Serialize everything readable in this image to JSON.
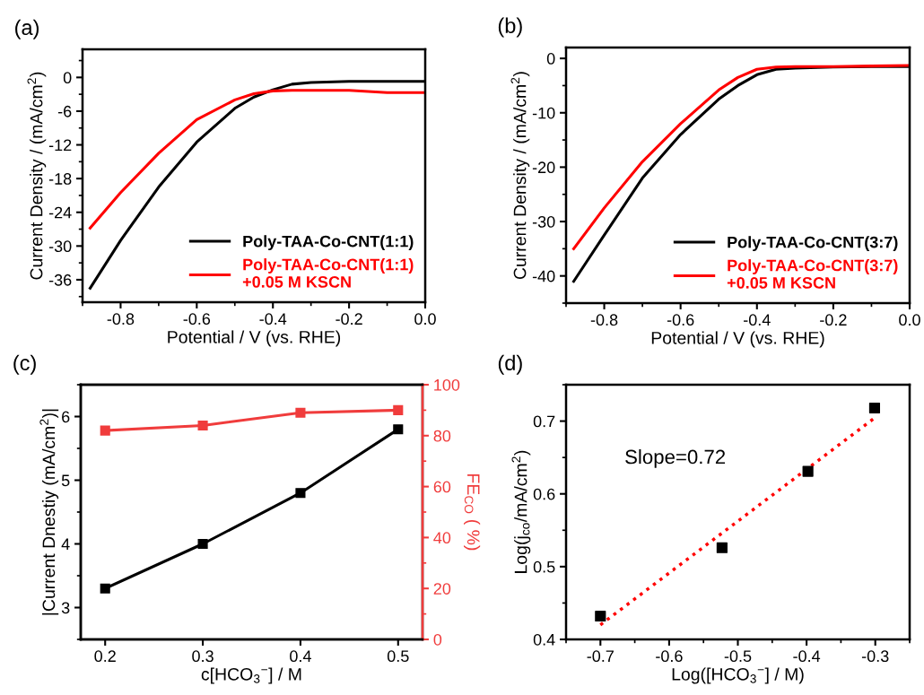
{
  "chart_data": [
    {
      "type": "line",
      "title": "(a)",
      "xlabel": "Potential / V (vs. RHE)",
      "ylabel": "Current Density / (mA/cm$^{2}$)",
      "xlim": [
        -0.9,
        0.0
      ],
      "xticks": [
        -0.8,
        -0.6,
        -0.4,
        -0.2,
        {
          "value": 0,
          "label": "0.0"
        }
      ],
      "ylim": [
        -40,
        5
      ],
      "yticks": [
        0,
        -6,
        -12,
        -18,
        -24,
        -30,
        -36
      ],
      "legend": "bottom right",
      "x": [
        -0.88,
        -0.8,
        -0.7,
        -0.6,
        -0.5,
        -0.45,
        -0.4,
        -0.35,
        -0.3,
        -0.2,
        -0.1,
        0.0
      ],
      "series": [
        {
          "name": "Poly-TAA-Co-CNT(1:1)",
          "color": "#000000",
          "values": [
            -37.5,
            -29,
            -19.5,
            -11.5,
            -5.5,
            -3.5,
            -2.2,
            -1.2,
            -0.9,
            -0.7,
            -0.7,
            -0.7
          ]
        },
        {
          "name": "Poly-TAA-Co-CNT(1:1)\n+0.05 M KSCN",
          "color": "#ff0000",
          "values": [
            -26.8,
            -20.5,
            -13.5,
            -7.5,
            -4,
            -2.9,
            -2.4,
            -2.3,
            -2.3,
            -2.3,
            -2.7,
            -2.7
          ]
        }
      ]
    },
    {
      "type": "line",
      "title": "(b)",
      "xlabel": "Potential / V (vs. RHE)",
      "ylabel": "Current Density / (mA/cm$^{2}$)",
      "xlim": [
        -0.9,
        0.0
      ],
      "xticks": [
        -0.8,
        -0.6,
        -0.4,
        -0.2,
        {
          "value": 0,
          "label": "0.0"
        }
      ],
      "ylim": [
        -45,
        2
      ],
      "yticks": [
        0,
        -10,
        -20,
        -30,
        -40
      ],
      "legend": "bottom right",
      "x": [
        -0.88,
        -0.8,
        -0.7,
        -0.6,
        -0.5,
        -0.45,
        -0.4,
        -0.35,
        -0.3,
        -0.2,
        -0.1,
        0.0
      ],
      "series": [
        {
          "name": "Poly-TAA-Co-CNT(3:7)",
          "color": "#000000",
          "values": [
            -41,
            -32.5,
            -22,
            -14,
            -7.5,
            -5,
            -3,
            -2,
            -1.8,
            -1.6,
            -1.5,
            -1.5
          ]
        },
        {
          "name": "Poly-TAA-Co-CNT(3:7)\n+0.05 M KSCN",
          "color": "#ff0000",
          "values": [
            -35,
            -27.5,
            -19,
            -12,
            -5.8,
            -3.5,
            -2,
            -1.6,
            -1.5,
            -1.5,
            -1.4,
            -1.3
          ]
        }
      ]
    },
    {
      "type": "line",
      "title": "(c)",
      "xlabel": "c[HCO$_{3}$$^{−}$] / M",
      "ylabel": "|Current Dnestiy (mA/cm$^{2}$)|",
      "y2label": "FE$_{CO}$ ( %)",
      "marker": "square",
      "xlim": [
        0.175,
        0.525
      ],
      "xticks": [
        0.2,
        0.3,
        0.4,
        0.5
      ],
      "ylim": [
        2.5,
        6.5
      ],
      "yticks": [
        3,
        4,
        5,
        6
      ],
      "y2lim": [
        0,
        100
      ],
      "y2ticks": [
        0,
        20,
        40,
        60,
        80,
        100
      ],
      "x": [
        0.2,
        0.3,
        0.4,
        0.5
      ],
      "series": [
        {
          "color": "#000000",
          "values": [
            3.3,
            4.0,
            4.8,
            5.8
          ]
        },
        {
          "color": "#f03c3c",
          "axis": "y2",
          "values": [
            82,
            84,
            89,
            90
          ]
        }
      ]
    },
    {
      "type": "scatter",
      "title": "(d)",
      "xlabel": "Log([HCO$_{3}$$^{−}$] / M)",
      "ylabel": "Log(j$_{co}$/mA/cm$^{2}$)",
      "marker": "square",
      "xlim": [
        -0.75,
        -0.25
      ],
      "xticks": [
        -0.7,
        -0.6,
        -0.5,
        -0.4,
        -0.3
      ],
      "ylim": [
        0.4,
        0.75
      ],
      "yticks": [
        0.4,
        0.5,
        0.6,
        0.7
      ],
      "annotations": [
        "Slope=0.72"
      ],
      "series": [
        {
          "color": "#000000",
          "x": [
            -0.7,
            -0.523,
            -0.398,
            -0.301
          ],
          "values": [
            0.432,
            0.526,
            0.631,
            0.718
          ]
        },
        {
          "type": "line",
          "color": "#ff0000",
          "line_style": "dotted",
          "marker": "none",
          "x": [
            -0.7,
            -0.3
          ],
          "values": [
            0.42,
            0.705
          ]
        }
      ]
    }
  ]
}
